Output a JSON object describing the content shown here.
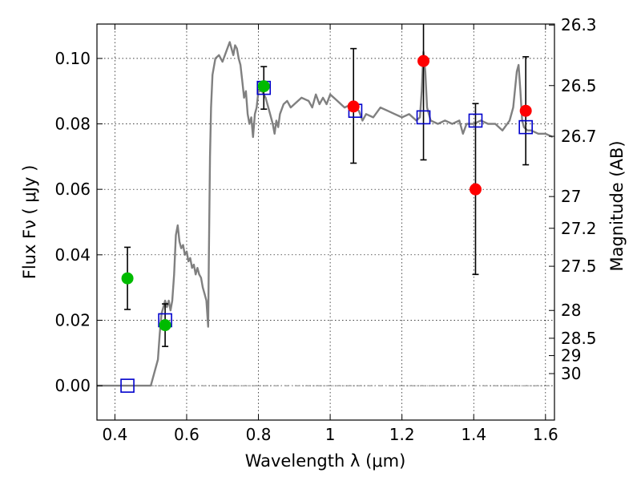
{
  "chart_data": {
    "type": "scatter",
    "xlabel": "Wavelength  λ (μm)",
    "ylabel": "Flux  Fν  ( μJy )",
    "ylabel_right": "Magnitude (AB)",
    "xlim": [
      0.35,
      1.625
    ],
    "ylim": [
      -0.0105,
      0.1105
    ],
    "grid": true,
    "x_ticks": [
      0.4,
      0.6,
      0.8,
      1.0,
      1.2,
      1.4,
      1.6
    ],
    "x_tick_labels": [
      "0.4",
      "0.6",
      "0.8",
      "1",
      "1.2",
      "1.4",
      "1.6"
    ],
    "y_ticks": [
      0.0,
      0.02,
      0.04,
      0.06,
      0.08,
      0.1
    ],
    "y_tick_labels": [
      "0.00",
      "0.02",
      "0.04",
      "0.06",
      "0.08",
      "0.10"
    ],
    "right_ticks": [
      {
        "label": "26.3",
        "flux": 0.1102
      },
      {
        "label": "26.5",
        "flux": 0.0917
      },
      {
        "label": "26.7",
        "flux": 0.0762
      },
      {
        "label": "27",
        "flux": 0.0578
      },
      {
        "label": "27.2",
        "flux": 0.0481
      },
      {
        "label": "27.5",
        "flux": 0.0365
      },
      {
        "label": "28",
        "flux": 0.023
      },
      {
        "label": "28.5",
        "flux": 0.0145
      },
      {
        "label": "29",
        "flux": 0.0092
      },
      {
        "label": "30",
        "flux": 0.0037
      }
    ],
    "series": [
      {
        "kind": "line",
        "color": "#808080",
        "x": [
          0.35,
          0.5,
          0.52,
          0.525,
          0.53,
          0.535,
          0.54,
          0.545,
          0.55,
          0.555,
          0.56,
          0.565,
          0.57,
          0.575,
          0.58,
          0.585,
          0.59,
          0.595,
          0.6,
          0.605,
          0.61,
          0.615,
          0.62,
          0.625,
          0.63,
          0.635,
          0.64,
          0.645,
          0.65,
          0.655,
          0.66,
          0.662,
          0.665,
          0.668,
          0.672,
          0.68,
          0.69,
          0.7,
          0.71,
          0.72,
          0.73,
          0.735,
          0.74,
          0.745,
          0.75,
          0.755,
          0.76,
          0.765,
          0.77,
          0.775,
          0.78,
          0.785,
          0.79,
          0.795,
          0.8,
          0.81,
          0.82,
          0.83,
          0.84,
          0.845,
          0.85,
          0.855,
          0.86,
          0.87,
          0.88,
          0.89,
          0.9,
          0.92,
          0.94,
          0.95,
          0.96,
          0.97,
          0.98,
          0.99,
          1.0,
          1.02,
          1.04,
          1.06,
          1.08,
          1.09,
          1.1,
          1.12,
          1.14,
          1.16,
          1.18,
          1.2,
          1.22,
          1.24,
          1.25,
          1.255,
          1.26,
          1.265,
          1.27,
          1.28,
          1.3,
          1.32,
          1.34,
          1.36,
          1.37,
          1.38,
          1.4,
          1.42,
          1.44,
          1.46,
          1.48,
          1.5,
          1.51,
          1.52,
          1.525,
          1.53,
          1.535,
          1.54,
          1.55,
          1.56,
          1.58,
          1.6,
          1.62
        ],
        "y": [
          0.0,
          0.0,
          0.008,
          0.016,
          0.022,
          0.024,
          0.026,
          0.024,
          0.026,
          0.023,
          0.026,
          0.034,
          0.046,
          0.049,
          0.044,
          0.042,
          0.043,
          0.04,
          0.041,
          0.038,
          0.039,
          0.036,
          0.037,
          0.034,
          0.036,
          0.034,
          0.033,
          0.03,
          0.028,
          0.026,
          0.018,
          0.04,
          0.07,
          0.085,
          0.095,
          0.1,
          0.101,
          0.099,
          0.102,
          0.105,
          0.101,
          0.104,
          0.103,
          0.1,
          0.098,
          0.093,
          0.088,
          0.09,
          0.083,
          0.08,
          0.082,
          0.076,
          0.083,
          0.085,
          0.09,
          0.09,
          0.088,
          0.084,
          0.08,
          0.077,
          0.081,
          0.079,
          0.083,
          0.086,
          0.087,
          0.085,
          0.086,
          0.088,
          0.087,
          0.085,
          0.089,
          0.086,
          0.088,
          0.086,
          0.089,
          0.087,
          0.085,
          0.086,
          0.084,
          0.081,
          0.083,
          0.082,
          0.085,
          0.084,
          0.083,
          0.082,
          0.083,
          0.081,
          0.082,
          0.09,
          0.102,
          0.096,
          0.085,
          0.081,
          0.08,
          0.081,
          0.08,
          0.081,
          0.077,
          0.08,
          0.08,
          0.081,
          0.08,
          0.08,
          0.078,
          0.081,
          0.085,
          0.096,
          0.098,
          0.09,
          0.081,
          0.079,
          0.078,
          0.078,
          0.077,
          0.077,
          0.076
        ]
      },
      {
        "kind": "open-square",
        "color": "#0000cc",
        "x": [
          0.435,
          0.54,
          0.815,
          1.07,
          1.26,
          1.405,
          1.545
        ],
        "y": [
          0.0,
          0.02,
          0.091,
          0.084,
          0.082,
          0.081,
          0.079
        ]
      },
      {
        "kind": "filled-circle",
        "color": "#00bb00",
        "x": [
          0.435,
          0.54,
          0.815
        ],
        "y": [
          0.0328,
          0.0185,
          0.0915
        ],
        "err_low": [
          0.0233,
          0.012,
          0.0845
        ],
        "err_high": [
          0.0423,
          0.025,
          0.0975
        ]
      },
      {
        "kind": "filled-circle",
        "color": "#ff0000",
        "x": [
          1.065,
          1.26,
          1.405,
          1.545
        ],
        "y": [
          0.0853,
          0.0992,
          0.06,
          0.084
        ],
        "err_low": [
          0.068,
          0.069,
          0.034,
          0.0675
        ],
        "err_high": [
          0.103,
          0.111,
          0.0862,
          0.1005
        ]
      }
    ],
    "baseline": 0.0
  }
}
